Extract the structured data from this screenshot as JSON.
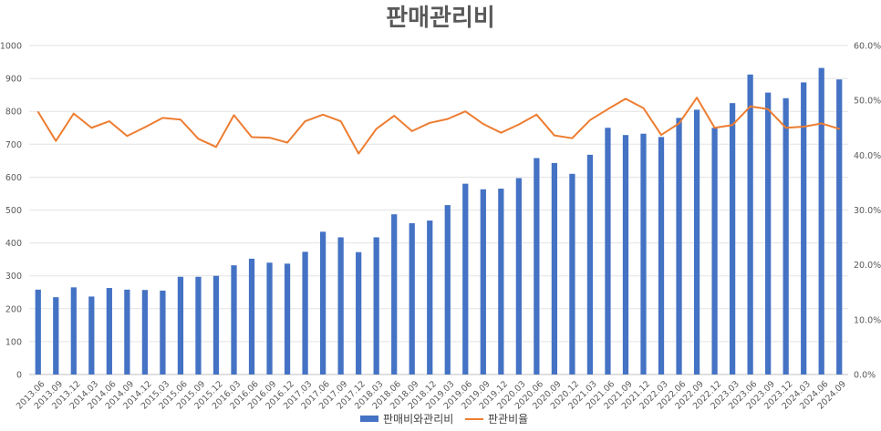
{
  "chart_data": {
    "type": "bar",
    "title": "판매관리비",
    "categories": [
      "2013.06",
      "2013.09",
      "2013.12",
      "2014.03",
      "2014.06",
      "2014.09",
      "2014.12",
      "2015.03",
      "2015.06",
      "2015.09",
      "2015.12",
      "2016.03",
      "2016.06",
      "2016.09",
      "2016.12",
      "2017.03",
      "2017.06",
      "2017.09",
      "2017.12",
      "2018.03",
      "2018.06",
      "2018.09",
      "2018.12",
      "2019.03",
      "2019.06",
      "2019.09",
      "2019.12",
      "2020.03",
      "2020.06",
      "2020.09",
      "2020.12",
      "2021.03",
      "2021.06",
      "2021.09",
      "2021.12",
      "2022.03",
      "2022.06",
      "2022.09",
      "2022.12",
      "2023.03",
      "2023.06",
      "2023.09",
      "2023.12",
      "2024.03",
      "2024.06",
      "2024.09"
    ],
    "series": [
      {
        "name": "판매비와관리비",
        "type": "bar",
        "axis": "left",
        "color": "#4472C4",
        "values": [
          258,
          235,
          265,
          237,
          263,
          258,
          257,
          255,
          297,
          297,
          300,
          332,
          352,
          340,
          337,
          373,
          434,
          417,
          372,
          417,
          487,
          460,
          468,
          515,
          580,
          563,
          565,
          597,
          658,
          643,
          610,
          668,
          750,
          728,
          732,
          722,
          780,
          805,
          750,
          825,
          912,
          857,
          840,
          888,
          932,
          897
        ]
      },
      {
        "name": "판관비율",
        "type": "line",
        "axis": "right",
        "color": "#ED7D31",
        "values": [
          47.9,
          42.6,
          47.6,
          45.0,
          46.2,
          43.5,
          45.1,
          46.8,
          46.5,
          43.0,
          41.5,
          47.3,
          43.3,
          43.2,
          42.3,
          46.2,
          47.4,
          46.2,
          40.3,
          44.8,
          47.2,
          44.4,
          45.9,
          46.6,
          48.0,
          45.7,
          44.1,
          45.6,
          47.4,
          43.6,
          43.1,
          46.4,
          48.4,
          50.3,
          48.6,
          43.7,
          45.8,
          50.5,
          45.0,
          45.5,
          48.9,
          48.4,
          45.0,
          45.2,
          45.8,
          44.8
        ]
      }
    ],
    "y_left": {
      "min": 0,
      "max": 1000,
      "step": 100
    },
    "y_right": {
      "min": 0,
      "max": 60,
      "step": 10,
      "suffix": "%"
    },
    "grid": true,
    "legend_position": "bottom"
  }
}
